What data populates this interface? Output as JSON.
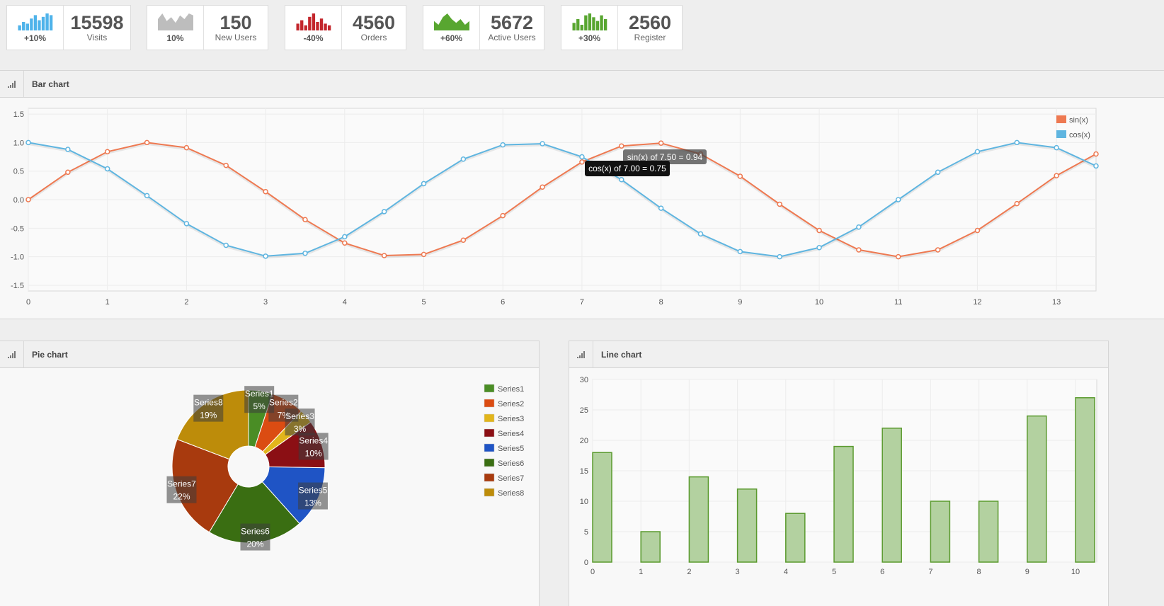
{
  "stats": [
    {
      "value": "15598",
      "label": "Visits",
      "pct": "+10%",
      "color": "#4fb3ea",
      "kind": "bars",
      "spark": [
        3,
        5,
        4,
        7,
        9,
        6,
        8,
        10,
        9
      ]
    },
    {
      "value": "150",
      "label": "New Users",
      "pct": "10%",
      "color": "#bdbdbd",
      "kind": "area",
      "spark": [
        6,
        9,
        5,
        7,
        4,
        8,
        6,
        9,
        8
      ]
    },
    {
      "value": "4560",
      "label": "Orders",
      "pct": "-40%",
      "color": "#c3262c",
      "kind": "bars",
      "spark": [
        4,
        6,
        3,
        8,
        10,
        5,
        7,
        4,
        3
      ]
    },
    {
      "value": "5672",
      "label": "Active Users",
      "pct": "+60%",
      "color": "#58a630",
      "kind": "area",
      "spark": [
        5,
        3,
        7,
        9,
        6,
        4,
        6,
        3,
        5
      ]
    },
    {
      "value": "2560",
      "label": "Register",
      "pct": "+30%",
      "color": "#58a630",
      "kind": "bars",
      "spark": [
        4,
        6,
        3,
        8,
        9,
        7,
        5,
        8,
        6
      ]
    }
  ],
  "panels": {
    "bar_title": "Bar chart",
    "pie_title": "Pie chart",
    "line_title": "Line chart"
  },
  "tooltips": {
    "sin_text": "sin(x) of 7.50 = 0.94",
    "cos_text": "cos(x) of 7.00 = 0.75"
  },
  "chart_data": [
    {
      "type": "line",
      "title": "Bar chart",
      "x": [
        0,
        0.5,
        1,
        1.5,
        2,
        2.5,
        3,
        3.5,
        4,
        4.5,
        5,
        5.5,
        6,
        6.5,
        7,
        7.5,
        8,
        8.5,
        9,
        9.5,
        10,
        10.5,
        11,
        11.5,
        12,
        12.5,
        13,
        13.5
      ],
      "series": [
        {
          "name": "sin(x)",
          "color": "#ee7951",
          "values": [
            0,
            0.48,
            0.84,
            1.0,
            0.91,
            0.6,
            0.14,
            -0.35,
            -0.76,
            -0.98,
            -0.96,
            -0.71,
            -0.28,
            0.22,
            0.66,
            0.94,
            0.99,
            0.8,
            0.41,
            -0.08,
            -0.54,
            -0.88,
            -1.0,
            -0.88,
            -0.54,
            -0.07,
            0.42,
            0.8
          ]
        },
        {
          "name": "cos(x)",
          "color": "#5fb5e0",
          "values": [
            1.0,
            0.88,
            0.54,
            0.07,
            -0.42,
            -0.8,
            -0.99,
            -0.94,
            -0.65,
            -0.21,
            0.28,
            0.71,
            0.96,
            0.98,
            0.75,
            0.35,
            -0.15,
            -0.6,
            -0.91,
            -1.0,
            -0.84,
            -0.48,
            0.0,
            0.48,
            0.84,
            1.0,
            0.91,
            0.59
          ]
        }
      ],
      "xlim": [
        0,
        13.5
      ],
      "ylim": [
        -1.6,
        1.6
      ],
      "xticks": [
        0,
        1,
        2,
        3,
        4,
        5,
        6,
        7,
        8,
        9,
        10,
        11,
        12,
        13
      ],
      "yticks": [
        1.5,
        1.0,
        0.5,
        0.0,
        -0.5,
        -1.0,
        -1.5
      ],
      "ytick_labels": [
        "1.5",
        "1.0",
        "0.5",
        "0.0",
        "-0.5",
        "-1.0",
        "-1.5"
      ],
      "grid": true,
      "legend": "top-right"
    },
    {
      "type": "pie",
      "title": "Pie chart",
      "labels": [
        "Series1",
        "Series2",
        "Series3",
        "Series4",
        "Series5",
        "Series6",
        "Series7",
        "Series8"
      ],
      "values": [
        5,
        7,
        3,
        10,
        13,
        20,
        22,
        19
      ],
      "value_labels": [
        "5%",
        "7%",
        "3%",
        "10%",
        "13%",
        "20%",
        "22%",
        "19%"
      ],
      "colors": [
        "#4a8d25",
        "#db4c12",
        "#e2b51b",
        "#8b0f14",
        "#1f54c5",
        "#3a6e12",
        "#a83a0e",
        "#bd8c0a"
      ],
      "legend": "right"
    },
    {
      "type": "bar",
      "title": "Line chart",
      "categories": [
        0,
        1,
        2,
        3,
        4,
        5,
        6,
        7,
        8,
        9,
        10
      ],
      "values": [
        18,
        5,
        14,
        12,
        8,
        19,
        22,
        10,
        10,
        24,
        27
      ],
      "ylim": [
        0,
        30
      ],
      "yticks": [
        0,
        5,
        10,
        15,
        20,
        25,
        30
      ],
      "color": "#b3d1a0",
      "border_color": "#5a9a2e",
      "grid": true
    }
  ]
}
